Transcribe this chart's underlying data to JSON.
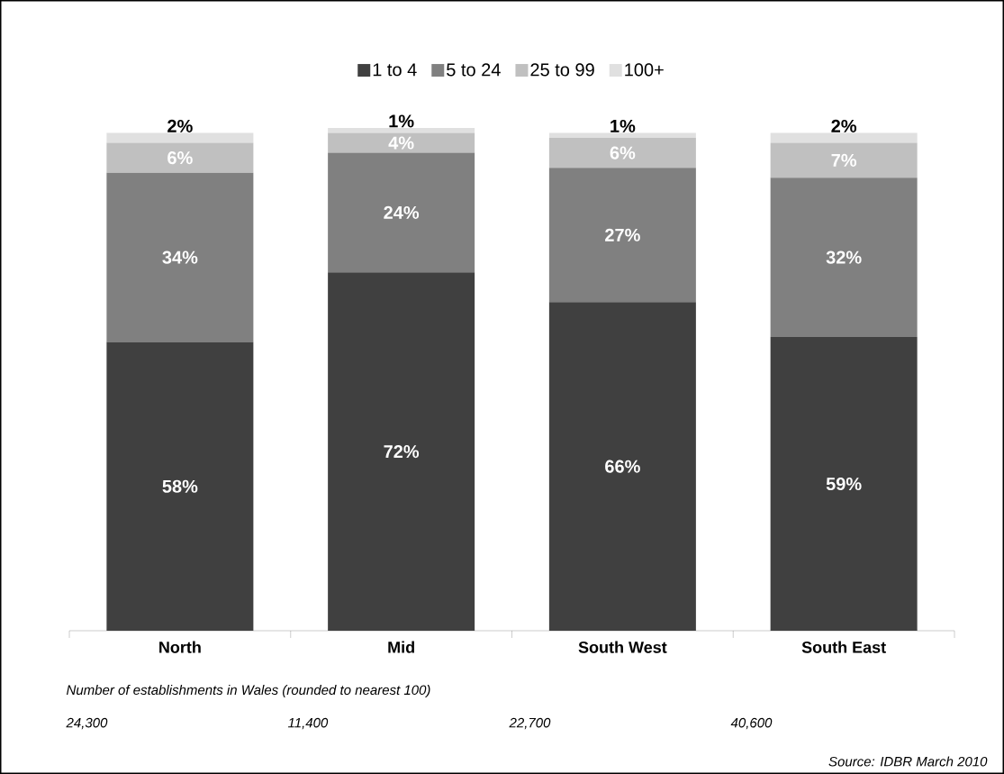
{
  "chart_data": {
    "type": "bar",
    "stacked": true,
    "legend": "top",
    "categories": [
      "North",
      "Mid",
      "South West",
      "South East"
    ],
    "series": [
      {
        "name": "1 to 4",
        "color": "#404040",
        "values": [
          58,
          72,
          66,
          59
        ],
        "value_labels": [
          "58%",
          "72%",
          "66%",
          "59%"
        ]
      },
      {
        "name": "5 to 24",
        "color": "#808080",
        "values": [
          34,
          24,
          27,
          32
        ],
        "value_labels": [
          "34%",
          "24%",
          "27%",
          "32%"
        ]
      },
      {
        "name": "25 to 99",
        "color": "#c0c0c0",
        "values": [
          6,
          4,
          6,
          7
        ],
        "value_labels": [
          "6%",
          "4%",
          "6%",
          "7%"
        ]
      },
      {
        "name": "100+",
        "color": "#e0e0e0",
        "values": [
          2,
          1,
          1,
          2
        ],
        "value_labels": [
          "2%",
          "1%",
          "1%",
          "2%"
        ]
      }
    ],
    "annotations": [
      "Number of establishments in Wales (rounded to nearest 100)",
      "24,300",
      "11,400",
      "22,700",
      "40,600",
      "Source: IDBR March 2010"
    ]
  }
}
